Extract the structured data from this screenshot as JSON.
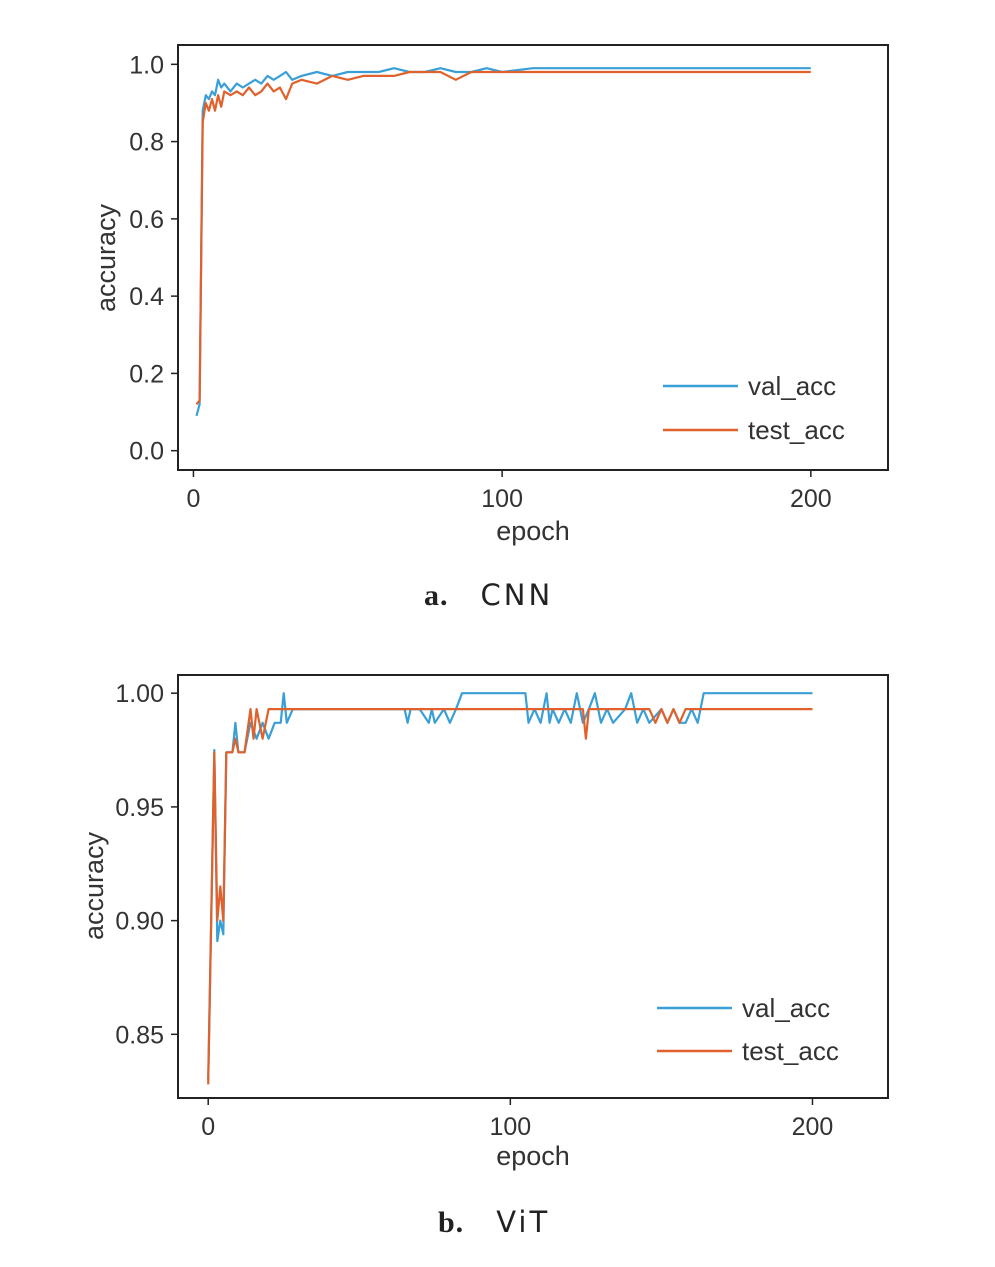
{
  "captions": [
    {
      "letter": "a.",
      "name": "CNN"
    },
    {
      "letter": "b.",
      "name": "ViT"
    }
  ],
  "colors": {
    "val_acc": "#3a9fd6",
    "test_acc": "#e0612b"
  },
  "chart_data": [
    {
      "type": "line",
      "xlabel": "epoch",
      "ylabel": "accuracy",
      "xlim": [
        -5,
        225
      ],
      "ylim": [
        -0.05,
        1.05
      ],
      "xticks": [
        0,
        100,
        200
      ],
      "yticks": [
        0.0,
        0.2,
        0.4,
        0.6,
        0.8,
        1.0
      ],
      "yticklabels": [
        "0.0",
        "0.2",
        "0.4",
        "0.6",
        "0.8",
        "1.0"
      ],
      "legend_position": "lower-right",
      "series": [
        {
          "name": "val_acc",
          "x": [
            1,
            2,
            3,
            4,
            5,
            6,
            7,
            8,
            9,
            10,
            12,
            14,
            16,
            18,
            20,
            22,
            24,
            26,
            28,
            30,
            32,
            35,
            40,
            45,
            50,
            55,
            60,
            65,
            70,
            75,
            80,
            85,
            90,
            95,
            100,
            110,
            120,
            130,
            140,
            150,
            160,
            170,
            180,
            190,
            200
          ],
          "y": [
            0.09,
            0.12,
            0.88,
            0.92,
            0.91,
            0.93,
            0.92,
            0.96,
            0.94,
            0.95,
            0.93,
            0.95,
            0.94,
            0.95,
            0.96,
            0.95,
            0.97,
            0.96,
            0.97,
            0.98,
            0.96,
            0.97,
            0.98,
            0.97,
            0.98,
            0.98,
            0.98,
            0.99,
            0.98,
            0.98,
            0.99,
            0.98,
            0.98,
            0.99,
            0.98,
            0.99,
            0.99,
            0.99,
            0.99,
            0.99,
            0.99,
            0.99,
            0.99,
            0.99,
            0.99
          ]
        },
        {
          "name": "test_acc",
          "x": [
            1,
            2,
            3,
            4,
            5,
            6,
            7,
            8,
            9,
            10,
            12,
            14,
            16,
            18,
            20,
            22,
            24,
            26,
            28,
            30,
            32,
            35,
            40,
            45,
            50,
            55,
            60,
            65,
            70,
            75,
            80,
            85,
            90,
            95,
            100,
            110,
            120,
            130,
            140,
            150,
            160,
            170,
            180,
            190,
            200
          ],
          "y": [
            0.12,
            0.13,
            0.85,
            0.9,
            0.88,
            0.91,
            0.88,
            0.92,
            0.89,
            0.93,
            0.92,
            0.93,
            0.92,
            0.94,
            0.92,
            0.93,
            0.95,
            0.93,
            0.94,
            0.91,
            0.95,
            0.96,
            0.95,
            0.97,
            0.96,
            0.97,
            0.97,
            0.97,
            0.98,
            0.98,
            0.98,
            0.96,
            0.98,
            0.98,
            0.98,
            0.98,
            0.98,
            0.98,
            0.98,
            0.98,
            0.98,
            0.98,
            0.98,
            0.98,
            0.98
          ]
        }
      ]
    },
    {
      "type": "line",
      "xlabel": "epoch",
      "ylabel": "accuracy",
      "xlim": [
        -10,
        225
      ],
      "ylim": [
        0.822,
        1.008
      ],
      "xticks": [
        0,
        100,
        200
      ],
      "yticks": [
        0.85,
        0.9,
        0.95,
        1.0
      ],
      "yticklabels": [
        "0.85",
        "0.90",
        "0.95",
        "1.00"
      ],
      "legend_position": "lower-right",
      "series": [
        {
          "name": "val_acc",
          "x": [
            0,
            2,
            3,
            4,
            5,
            6,
            7,
            8,
            9,
            10,
            12,
            14,
            16,
            18,
            20,
            22,
            24,
            25,
            26,
            28,
            40,
            65,
            66,
            67,
            70,
            73,
            74,
            75,
            78,
            80,
            82,
            84,
            88,
            105,
            106,
            108,
            110,
            112,
            113,
            114,
            116,
            118,
            120,
            122,
            124,
            126,
            128,
            130,
            132,
            134,
            138,
            140,
            142,
            144,
            146,
            150,
            152,
            154,
            156,
            158,
            160,
            162,
            164,
            166,
            200
          ],
          "y": [
            0.83,
            0.975,
            0.891,
            0.9,
            0.894,
            0.974,
            0.974,
            0.974,
            0.987,
            0.974,
            0.974,
            0.987,
            0.98,
            0.987,
            0.98,
            0.987,
            0.987,
            1.0,
            0.987,
            0.993,
            0.993,
            0.993,
            0.987,
            0.993,
            0.993,
            0.987,
            0.993,
            0.987,
            0.993,
            0.987,
            0.993,
            1.0,
            1.0,
            1.0,
            0.987,
            0.993,
            0.987,
            1.0,
            0.987,
            0.993,
            0.987,
            0.993,
            0.987,
            1.0,
            0.987,
            0.993,
            1.0,
            0.987,
            0.993,
            0.987,
            0.993,
            1.0,
            0.987,
            0.993,
            0.987,
            0.993,
            0.987,
            0.993,
            0.987,
            0.987,
            0.993,
            0.987,
            1.0,
            1.0,
            1.0
          ]
        },
        {
          "name": "test_acc",
          "x": [
            0,
            2,
            3,
            4,
            5,
            6,
            7,
            8,
            9,
            10,
            12,
            14,
            15,
            16,
            18,
            20,
            22,
            24,
            26,
            28,
            40,
            60,
            80,
            100,
            120,
            124,
            125,
            126,
            128,
            140,
            146,
            148,
            150,
            152,
            154,
            156,
            158,
            200
          ],
          "y": [
            0.828,
            0.974,
            0.9,
            0.915,
            0.9,
            0.974,
            0.974,
            0.974,
            0.98,
            0.974,
            0.974,
            0.993,
            0.98,
            0.993,
            0.98,
            0.993,
            0.993,
            0.993,
            0.993,
            0.993,
            0.993,
            0.993,
            0.993,
            0.993,
            0.993,
            0.993,
            0.98,
            0.993,
            0.993,
            0.993,
            0.993,
            0.987,
            0.993,
            0.987,
            0.993,
            0.987,
            0.993,
            0.993
          ]
        }
      ]
    }
  ]
}
